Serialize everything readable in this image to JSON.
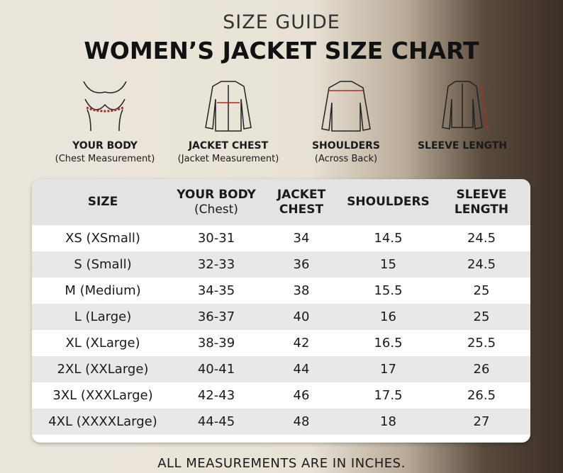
{
  "header": {
    "subtitle": "SIZE GUIDE",
    "title": "WOMEN’S JACKET SIZE CHART"
  },
  "icons": [
    {
      "label": "YOUR BODY",
      "sublabel": "(Chest Measurement)"
    },
    {
      "label": "JACKET CHEST",
      "sublabel": "(Jacket Measurement)"
    },
    {
      "label": "SHOULDERS",
      "sublabel": "(Across Back)"
    },
    {
      "label": "SLEEVE LENGTH"
    }
  ],
  "table": {
    "columns": [
      {
        "label": "SIZE"
      },
      {
        "label": "YOUR BODY",
        "sublabel": "(Chest)"
      },
      {
        "label": "JACKET CHEST"
      },
      {
        "label": "SHOULDERS"
      },
      {
        "label": "SLEEVE LENGTH"
      }
    ],
    "rows": [
      [
        "XS (XSmall)",
        "30-31",
        34,
        14.5,
        24.5
      ],
      [
        "S (Small)",
        "32-33",
        36,
        15,
        24.5
      ],
      [
        "M (Medium)",
        "34-35",
        38,
        15.5,
        25
      ],
      [
        "L (Large)",
        "36-37",
        40,
        16,
        25
      ],
      [
        "XL (XLarge)",
        "38-39",
        42,
        16.5,
        25.5
      ],
      [
        "2XL (XXLarge)",
        "40-41",
        44,
        17,
        26
      ],
      [
        "3XL (XXXLarge)",
        "42-43",
        46,
        17.5,
        26.5
      ],
      [
        "4XL (XXXXLarge)",
        "44-45",
        48,
        18,
        27
      ]
    ]
  },
  "footer": "ALL MEASUREMENTS ARE IN INCHES."
}
